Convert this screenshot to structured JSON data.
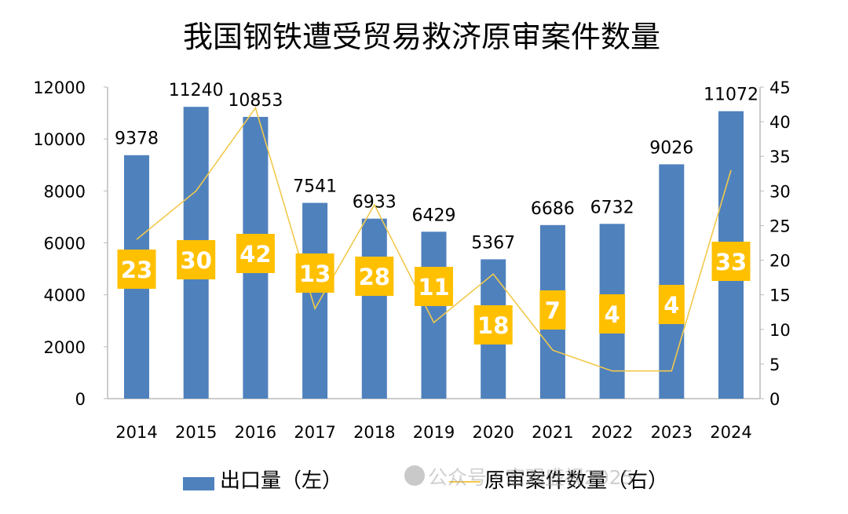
{
  "chart_data": {
    "type": "bar+line",
    "title": "我国钢铁遭受贸易救济原审案件数量",
    "categories": [
      "2014",
      "2015",
      "2016",
      "2017",
      "2018",
      "2019",
      "2020",
      "2021",
      "2022",
      "2023",
      "2024"
    ],
    "series": [
      {
        "name": "出口量（左）",
        "type": "bar",
        "axis": "left",
        "color": "#4F81BD",
        "values": [
          9378,
          11240,
          10853,
          7541,
          6933,
          6429,
          5367,
          6686,
          6732,
          9026,
          11072
        ]
      },
      {
        "name": "原审案件数量（右）",
        "type": "line",
        "axis": "right",
        "color": "#F2C94C",
        "values": [
          23,
          30,
          42,
          13,
          28,
          11,
          18,
          7,
          4,
          4,
          33
        ]
      }
    ],
    "y_left": {
      "range": [
        0,
        12000
      ],
      "ticks": [
        "0",
        "2000",
        "4000",
        "6000",
        "8000",
        "10000",
        "12000"
      ]
    },
    "y_right": {
      "range": [
        0,
        45
      ],
      "ticks": [
        "0",
        "5",
        "10",
        "15",
        "20",
        "25",
        "30",
        "35",
        "40",
        "45"
      ]
    },
    "grid": false,
    "legend_position": "bottom",
    "label_box_color": "#FFC000"
  },
  "watermark": "公众号 · 宏观盛视2025"
}
